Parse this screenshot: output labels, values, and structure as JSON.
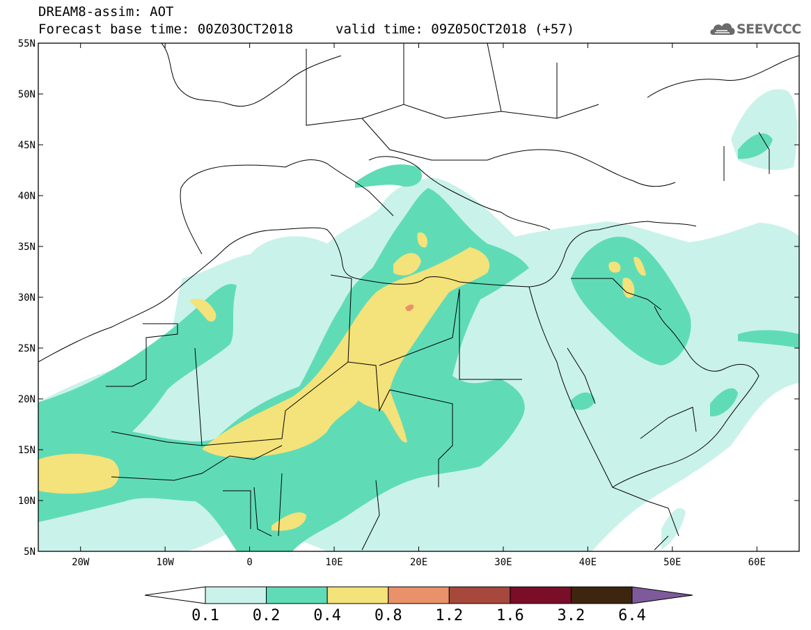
{
  "header": {
    "title": "DREAM8-assim: AOT",
    "base_time": "Forecast base time: 00Z03OCT2018",
    "valid_time": "valid time: 09Z05OCT2018 (+57)"
  },
  "logo": {
    "text": "SEEVCCC",
    "icon": "cloud-icon"
  },
  "map": {
    "lon_range": [
      -25,
      65
    ],
    "lat_range": [
      5,
      55
    ],
    "lat_labels": [
      "55N",
      "50N",
      "45N",
      "40N",
      "35N",
      "30N",
      "25N",
      "20N",
      "15N",
      "10N",
      "5N"
    ],
    "lon_labels": [
      "20W",
      "10W",
      "0",
      "10E",
      "20E",
      "30E",
      "40E",
      "50E",
      "60E"
    ]
  },
  "legend": {
    "thresholds": [
      "0.1",
      "0.2",
      "0.4",
      "0.8",
      "1.2",
      "1.6",
      "3.2",
      "6.4"
    ],
    "colors": [
      "#ffffff",
      "#c9f2ea",
      "#5fdcb6",
      "#f4e27a",
      "#e8916a",
      "#a7483c",
      "#7a0e28",
      "#3d2510",
      "#7e5a9a"
    ]
  }
}
